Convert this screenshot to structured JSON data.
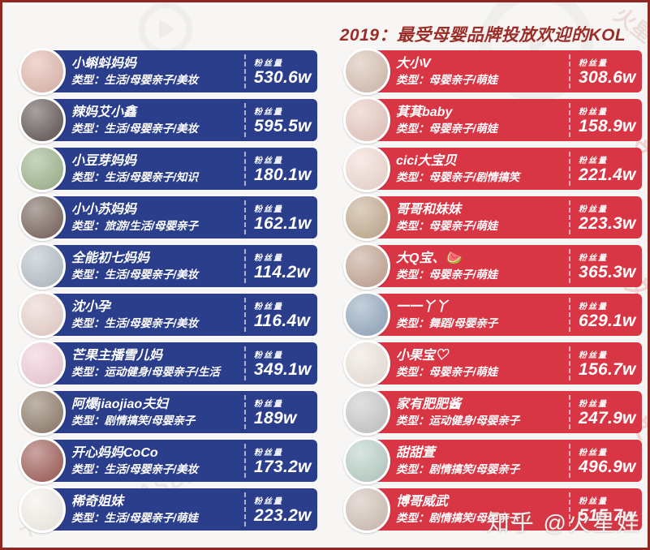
{
  "chart_data": {
    "type": "table",
    "title": "2019：最受母婴品牌投放欢迎的KOL",
    "columns": [
      "KOL",
      "类型",
      "粉丝量"
    ],
    "value_label": "粉丝量",
    "layout": {
      "legend": "none",
      "grid": "off",
      "left_column_color": "#2b3e8c",
      "right_column_color": "#d93645",
      "title_color": "#9a2d27"
    },
    "series": [
      {
        "name": "left",
        "color": "#2b3e8c",
        "rows": [
          {
            "kol": "小蝌蚪妈妈",
            "type": "类型：生活/母婴亲子/美妆",
            "fans": "530.6w",
            "avatar_color": "#e3b8ad"
          },
          {
            "kol": "辣妈艾小鑫",
            "type": "类型：生活/母婴亲子/美妆",
            "fans": "595.5w",
            "avatar_color": "#5f5350"
          },
          {
            "kol": "小豆芽妈妈",
            "type": "类型：生活/母婴亲子/知识",
            "fans": "180.1w",
            "avatar_color": "#9cb48b"
          },
          {
            "kol": "小小苏妈妈",
            "type": "类型：旅游/生活/母婴亲子",
            "fans": "162.1w",
            "avatar_color": "#756158"
          },
          {
            "kol": "全能初七妈妈",
            "type": "类型：生活/母婴亲子/美妆",
            "fans": "114.2w",
            "avatar_color": "#b6bfc7"
          },
          {
            "kol": "沈小孕",
            "type": "类型：生活/母婴亲子/美妆",
            "fans": "116.4w",
            "avatar_color": "#ead3cd"
          },
          {
            "kol": "芒果主播雪儿妈",
            "type": "类型：运动健身/母婴亲子/生活",
            "fans": "349.1w",
            "avatar_color": "#f2cdd9"
          },
          {
            "kol": "阿爆jiaojiao夫妇",
            "type": "类型：剧情搞笑/母婴亲子",
            "fans": "189w",
            "avatar_color": "#8d7a67"
          },
          {
            "kol": "开心妈妈CoCo",
            "type": "类型：生活/母婴亲子/美妆",
            "fans": "173.2w",
            "avatar_color": "#9e5a55"
          },
          {
            "kol": "稀奇姐妹",
            "type": "类型：生活/母婴亲子/萌娃",
            "fans": "223.2w",
            "avatar_color": "#f6f1ea"
          }
        ]
      },
      {
        "name": "right",
        "color": "#d93645",
        "rows": [
          {
            "kol": "大小V",
            "type": "类型：母婴亲子/萌娃",
            "fans": "308.6w",
            "avatar_color": "#d8c0b2"
          },
          {
            "kol": "萁萁baby",
            "type": "类型：母婴亲子/萌娃",
            "fans": "158.9w",
            "avatar_color": "#e9c9c1"
          },
          {
            "kol": "cici大宝贝",
            "type": "类型：母婴亲子/剧情搞笑",
            "fans": "221.4w",
            "avatar_color": "#f2dbd3"
          },
          {
            "kol": "哥哥和妹妹",
            "type": "类型：母婴亲子/萌娃",
            "fans": "223.3w",
            "avatar_color": "#c3ab8e"
          },
          {
            "kol": "大Q宝、🍉",
            "type": "类型：母婴亲子/萌娃",
            "fans": "365.3w",
            "avatar_color": "#c3a493"
          },
          {
            "kol": "一一丫丫",
            "type": "类型：舞蹈/母婴亲子",
            "fans": "629.1w",
            "avatar_color": "#93a9bf"
          },
          {
            "kol": "小果宝♡",
            "type": "类型：母婴亲子/萌娃",
            "fans": "156.7w",
            "avatar_color": "#efe6dd"
          },
          {
            "kol": "家有肥肥酱",
            "type": "类型：运动健身/母婴亲子",
            "fans": "247.9w",
            "avatar_color": "#c9c9c9"
          },
          {
            "kol": "甜甜萱",
            "type": "类型：剧情搞笑/母婴亲子",
            "fans": "496.9w",
            "avatar_color": "#b9d0c6"
          },
          {
            "kol": "博哥威武",
            "type": "类型：剧情搞笑/母婴亲子",
            "fans": "515.7w",
            "avatar_color": "#d2c1b7"
          }
        ]
      }
    ]
  },
  "watermarks": {
    "zhihu": "知乎 @火星娃",
    "mars": "火星",
    "edge_glyph": "文",
    "caas": "卡思数据CAASDATA"
  }
}
